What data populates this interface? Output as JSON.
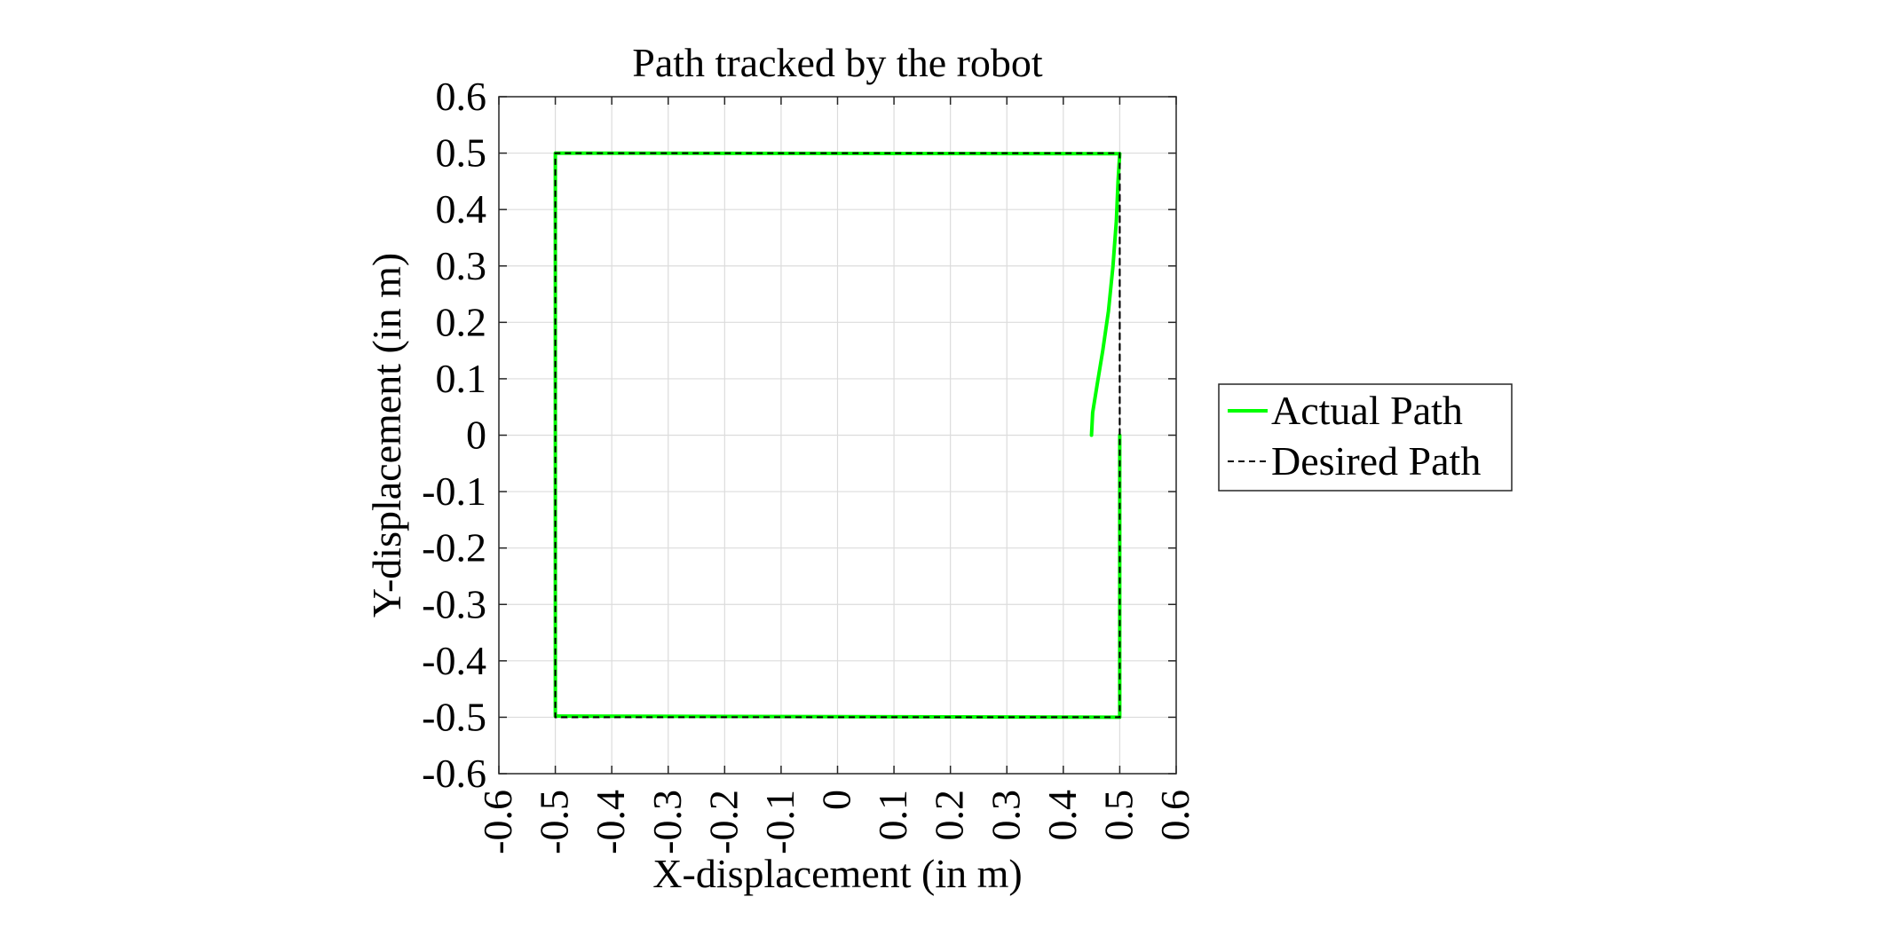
{
  "chart_data": {
    "type": "line",
    "title": "Path tracked by the robot",
    "xlabel": "X-displacement (in m)",
    "ylabel": "Y-displacement (in m)",
    "xlim": [
      -0.6,
      0.6
    ],
    "ylim": [
      -0.6,
      0.6
    ],
    "xticks": [
      -0.6,
      -0.5,
      -0.4,
      -0.3,
      -0.2,
      -0.1,
      0,
      0.1,
      0.2,
      0.3,
      0.4,
      0.5,
      0.6
    ],
    "yticks": [
      -0.6,
      -0.5,
      -0.4,
      -0.3,
      -0.2,
      -0.1,
      0,
      0.1,
      0.2,
      0.3,
      0.4,
      0.5,
      0.6
    ],
    "xtick_labels": [
      "-0.6",
      "-0.5",
      "-0.4",
      "-0.3",
      "-0.2",
      "-0.1",
      "0",
      "0.1",
      "0.2",
      "0.3",
      "0.4",
      "0.5",
      "0.6"
    ],
    "ytick_labels": [
      "0.6",
      "0.5",
      "0.4",
      "0.3",
      "0.2",
      "0.1",
      "0",
      "-0.1",
      "-0.2",
      "-0.3",
      "-0.4",
      "-0.5",
      "-0.6"
    ],
    "grid": true,
    "legend_position": "right",
    "series": [
      {
        "name": "Actual Path",
        "color": "#00ff00",
        "style": "solid",
        "x": [
          0.45,
          0.452,
          0.46,
          0.47,
          0.48,
          0.488,
          0.494,
          0.497,
          0.5,
          -0.5,
          -0.5,
          0.5,
          0.5
        ],
        "y": [
          0.0,
          0.04,
          0.09,
          0.15,
          0.22,
          0.3,
          0.38,
          0.45,
          0.499,
          0.5,
          -0.498,
          -0.5,
          0.0
        ]
      },
      {
        "name": "Desired Path",
        "color": "#000000",
        "style": "dashed",
        "x": [
          0.5,
          0.5,
          -0.5,
          -0.5,
          0.5,
          0.5
        ],
        "y": [
          0.0,
          0.5,
          0.5,
          -0.5,
          -0.5,
          0.0
        ]
      }
    ]
  }
}
